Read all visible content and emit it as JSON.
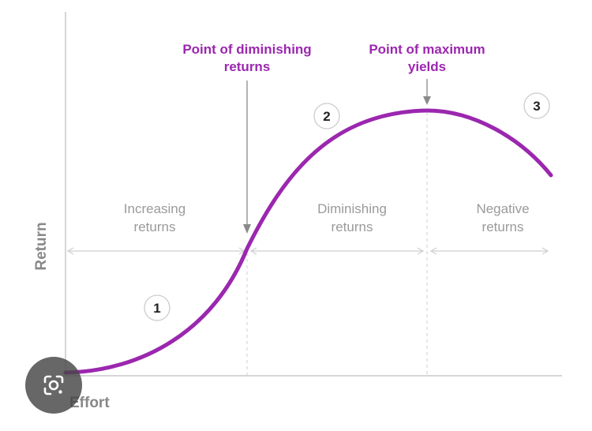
{
  "colors": {
    "accent": "#9b27af",
    "axis": "#c8c8c8",
    "guide": "#cfcfcf",
    "region_text": "#9a9a9a",
    "axis_text": "#888888"
  },
  "axes": {
    "x_label": "Effort",
    "y_label": "Return"
  },
  "annotations": {
    "diminishing": {
      "line1": "Point of diminishing",
      "line2": "returns"
    },
    "maximum": {
      "line1": "Point of maximum",
      "line2": "yields"
    }
  },
  "regions": {
    "increasing": {
      "line1": "Increasing",
      "line2": "returns"
    },
    "diminishing": {
      "line1": "Diminishing",
      "line2": "returns"
    },
    "negative": {
      "line1": "Negative",
      "line2": "returns"
    }
  },
  "markers": [
    "1",
    "2",
    "3"
  ],
  "overlay": {
    "icon": "camera-lens-icon"
  }
}
